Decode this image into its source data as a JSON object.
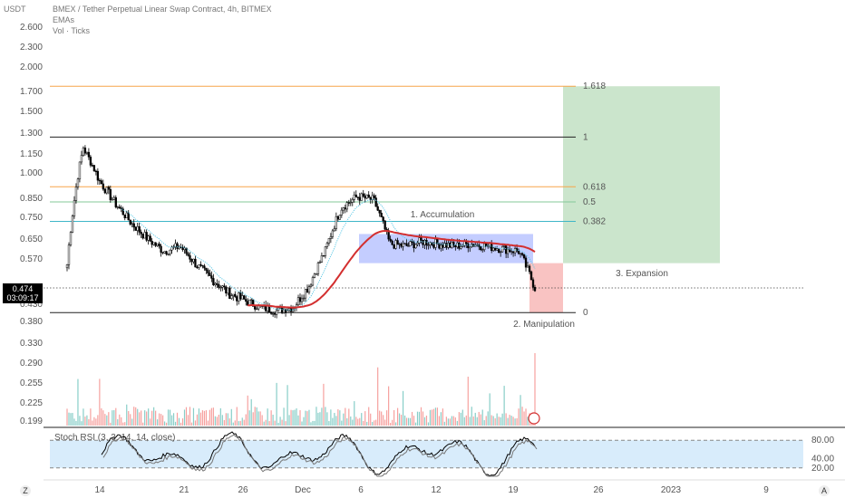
{
  "header": {
    "currency": "USDT",
    "title": "BMEX / Tether Perpetual Linear Swap Contract, 4h, BITMEX",
    "ema_label": "EMAs",
    "vol_label": "Vol · Ticks"
  },
  "price_badge": {
    "price": "0.474",
    "countdown": "03:09:17"
  },
  "colors": {
    "up": "#26a69a",
    "down": "#ef5350",
    "candle": "#000000",
    "fib_orange": "#f7a64a",
    "fib_green": "#85c99a",
    "fib_cyan": "#3fb6c8",
    "ema_red": "#d32f2f",
    "ema_blue": "#5ec9e6",
    "accum_box": "#3d5afe",
    "target_box": "#43a047",
    "manip_box": "#ef5350",
    "rsi_band": "#d8ecfb"
  },
  "chart_data": {
    "type": "candlestick",
    "price_axis_ticks": [
      "2.600",
      "2.300",
      "2.000",
      "1.700",
      "1.500",
      "1.300",
      "1.150",
      "1.000",
      "0.850",
      "0.750",
      "0.650",
      "0.570",
      "0.474",
      "0.430",
      "0.380",
      "0.330",
      "0.290",
      "0.255",
      "0.225",
      "0.199"
    ],
    "x_ticks": [
      "14",
      "21",
      "26",
      "Dec",
      "6",
      "12",
      "19",
      "26",
      "2023",
      "9"
    ],
    "fib_levels": [
      {
        "label": "1.618",
        "value": 1.76,
        "color": "#f7a64a"
      },
      {
        "label": "1",
        "value": 1.27,
        "color": "#222222"
      },
      {
        "label": "0.618",
        "value": 0.915,
        "color": "#f7a64a"
      },
      {
        "label": "0.5",
        "value": 0.83,
        "color": "#85c99a"
      },
      {
        "label": "0.382",
        "value": 0.73,
        "color": "#3fb6c8"
      },
      {
        "label": "0",
        "value": 0.405,
        "color": "#222222"
      }
    ],
    "annotations": [
      "1. Accumulation",
      "2. Manipulation",
      "3. Expansion"
    ],
    "last_price": 0.474,
    "candles_sampled": [
      0.55,
      1.2,
      0.95,
      0.82,
      0.72,
      0.65,
      0.6,
      0.62,
      0.55,
      0.5,
      0.46,
      0.44,
      0.42,
      0.41,
      0.42,
      0.48,
      0.6,
      0.8,
      0.86,
      0.84,
      0.63,
      0.62,
      0.64,
      0.63,
      0.62,
      0.63,
      0.62,
      0.61,
      0.6,
      0.474
    ],
    "stoch_rsi": {
      "label": "Stoch RSI (3, 3, 14, 14, close)",
      "ticks": [
        "80.00",
        "40.00",
        "20.00"
      ],
      "band": [
        20,
        80
      ]
    }
  },
  "bottom": {
    "left_btn": "Z",
    "right_btn": "A"
  }
}
